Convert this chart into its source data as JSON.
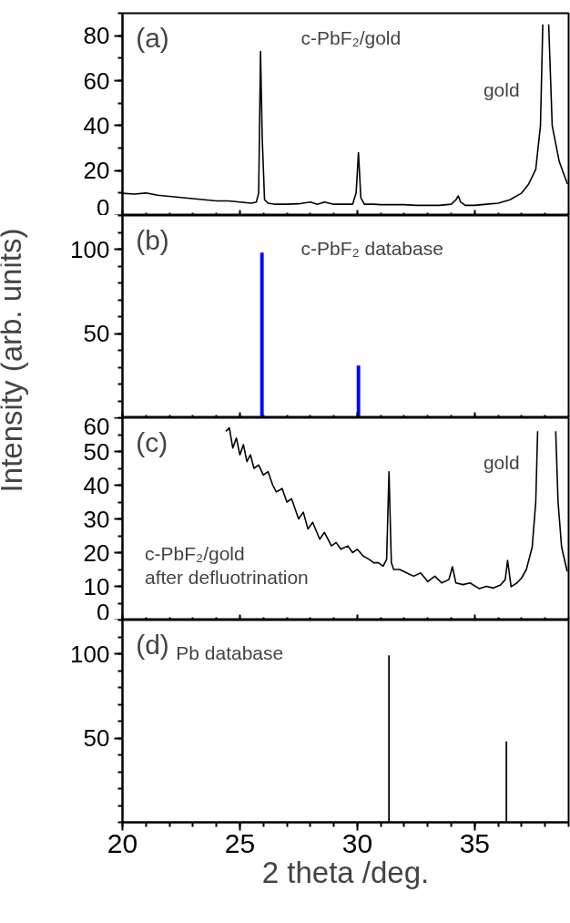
{
  "chart_data": [
    {
      "type": "line",
      "title": "(a)",
      "annotations": [
        "c-PbF₂/gold",
        "gold"
      ],
      "x": [
        20,
        20.5,
        21,
        21.5,
        22,
        22.5,
        23,
        23.5,
        24,
        24.5,
        25,
        25.5,
        25.7,
        25.8,
        25.88,
        25.95,
        26.05,
        26.2,
        26.5,
        27,
        27.5,
        28,
        28.3,
        28.6,
        29,
        29.5,
        29.8,
        29.95,
        30.05,
        30.15,
        30.3,
        30.7,
        31,
        31.5,
        32,
        32.5,
        33,
        33.5,
        34,
        34.2,
        34.3,
        34.4,
        34.6,
        35,
        35.5,
        36,
        36.5,
        37,
        37.3,
        37.6,
        37.8,
        37.9,
        38.0,
        38.15,
        38.3,
        38.6,
        38.95
      ],
      "series": [
        {
          "color": "#000000",
          "values": [
            9.9,
            9.5,
            10,
            9,
            8.5,
            8,
            7.5,
            7,
            6.5,
            6.5,
            6,
            5.5,
            6,
            10,
            73,
            35,
            7,
            5.5,
            5,
            5,
            5.2,
            6,
            5,
            6,
            5,
            5,
            5,
            10,
            28,
            8,
            5,
            5,
            4.8,
            4.8,
            4.8,
            4.5,
            4.5,
            4.5,
            5,
            7,
            8.7,
            6,
            4.5,
            4.5,
            5,
            5.5,
            7,
            10,
            14,
            20.5,
            40,
            85,
            null,
            85,
            40,
            24,
            14
          ]
        }
      ],
      "xlim": [
        20,
        39
      ],
      "ylim": [
        0,
        90
      ],
      "xticks": [
        20,
        25,
        30,
        35
      ],
      "yticks": [
        0,
        20,
        40,
        60,
        80
      ],
      "tick_labels": "y",
      "grid": false
    },
    {
      "type": "bar",
      "title": "(b)",
      "annotations": [
        "c-PbF₂ database"
      ],
      "ylabel": "Intensity (arb. units)",
      "x": [
        25.94,
        30.05
      ],
      "series": [
        {
          "color": "#0000ff",
          "values": [
            98,
            31
          ]
        }
      ],
      "xlim": [
        20,
        39
      ],
      "ylim": [
        0,
        120
      ],
      "xticks": [
        20,
        25,
        30,
        35
      ],
      "yticks": [
        50,
        100
      ],
      "tick_labels": "y",
      "grid": false
    },
    {
      "type": "line",
      "title": "(c)",
      "annotations": [
        "c-PbF₂/gold\nafter defluotrination",
        "gold"
      ],
      "x": [
        24.4,
        24.55,
        24.7,
        24.85,
        25.0,
        25.15,
        25.3,
        25.45,
        25.6,
        25.8,
        26.0,
        26.2,
        26.4,
        26.55,
        26.8,
        27.0,
        27.2,
        27.5,
        27.7,
        27.9,
        28.1,
        28.4,
        28.6,
        28.9,
        29.1,
        29.3,
        29.6,
        29.8,
        30.0,
        30.25,
        30.5,
        30.7,
        30.9,
        31.1,
        31.25,
        31.35,
        31.45,
        31.55,
        31.8,
        32.1,
        32.4,
        32.7,
        33.0,
        33.3,
        33.6,
        33.9,
        34.05,
        34.2,
        34.5,
        34.8,
        35.2,
        35.5,
        35.8,
        36.1,
        36.3,
        36.4,
        36.55,
        36.8,
        37.0,
        37.2,
        37.45,
        37.6,
        37.68,
        38.0,
        38.45,
        38.55,
        38.7,
        38.94
      ],
      "series": [
        {
          "color": "#000000",
          "values": [
            56,
            57,
            51,
            54,
            49,
            52,
            47,
            49,
            45,
            46,
            43,
            44,
            40,
            38,
            39,
            35,
            36,
            30,
            32,
            27,
            29,
            24,
            26,
            22,
            23,
            21,
            22,
            20,
            21,
            19,
            18,
            17,
            17,
            16,
            18,
            44,
            17,
            15,
            15,
            14,
            13,
            14,
            11.4,
            13,
            11,
            12,
            15.8,
            11,
            10.5,
            11,
            9.3,
            10,
            9.5,
            10.4,
            12,
            17.7,
            9.9,
            11,
            12.5,
            15,
            21.7,
            35,
            56,
            null,
            56,
            35,
            21.7,
            14.4
          ]
        }
      ],
      "xlim": [
        20,
        39
      ],
      "ylim": [
        0,
        60
      ],
      "xticks": [
        20,
        25,
        30,
        35
      ],
      "yticks": [
        0,
        10,
        20,
        30,
        40,
        50,
        60
      ],
      "tick_labels": "y",
      "grid": false
    },
    {
      "type": "bar",
      "title": "(d)",
      "annotations": [
        "Pb database"
      ],
      "xlabel": "2 theta /deg.",
      "x": [
        31.35,
        36.35
      ],
      "series": [
        {
          "color": "#000000",
          "values": [
            99,
            48
          ]
        }
      ],
      "xlim": [
        20,
        39
      ],
      "ylim": [
        0,
        120
      ],
      "xticks": [
        20,
        25,
        30,
        35
      ],
      "yticks": [
        50,
        100
      ],
      "grid": false
    }
  ]
}
